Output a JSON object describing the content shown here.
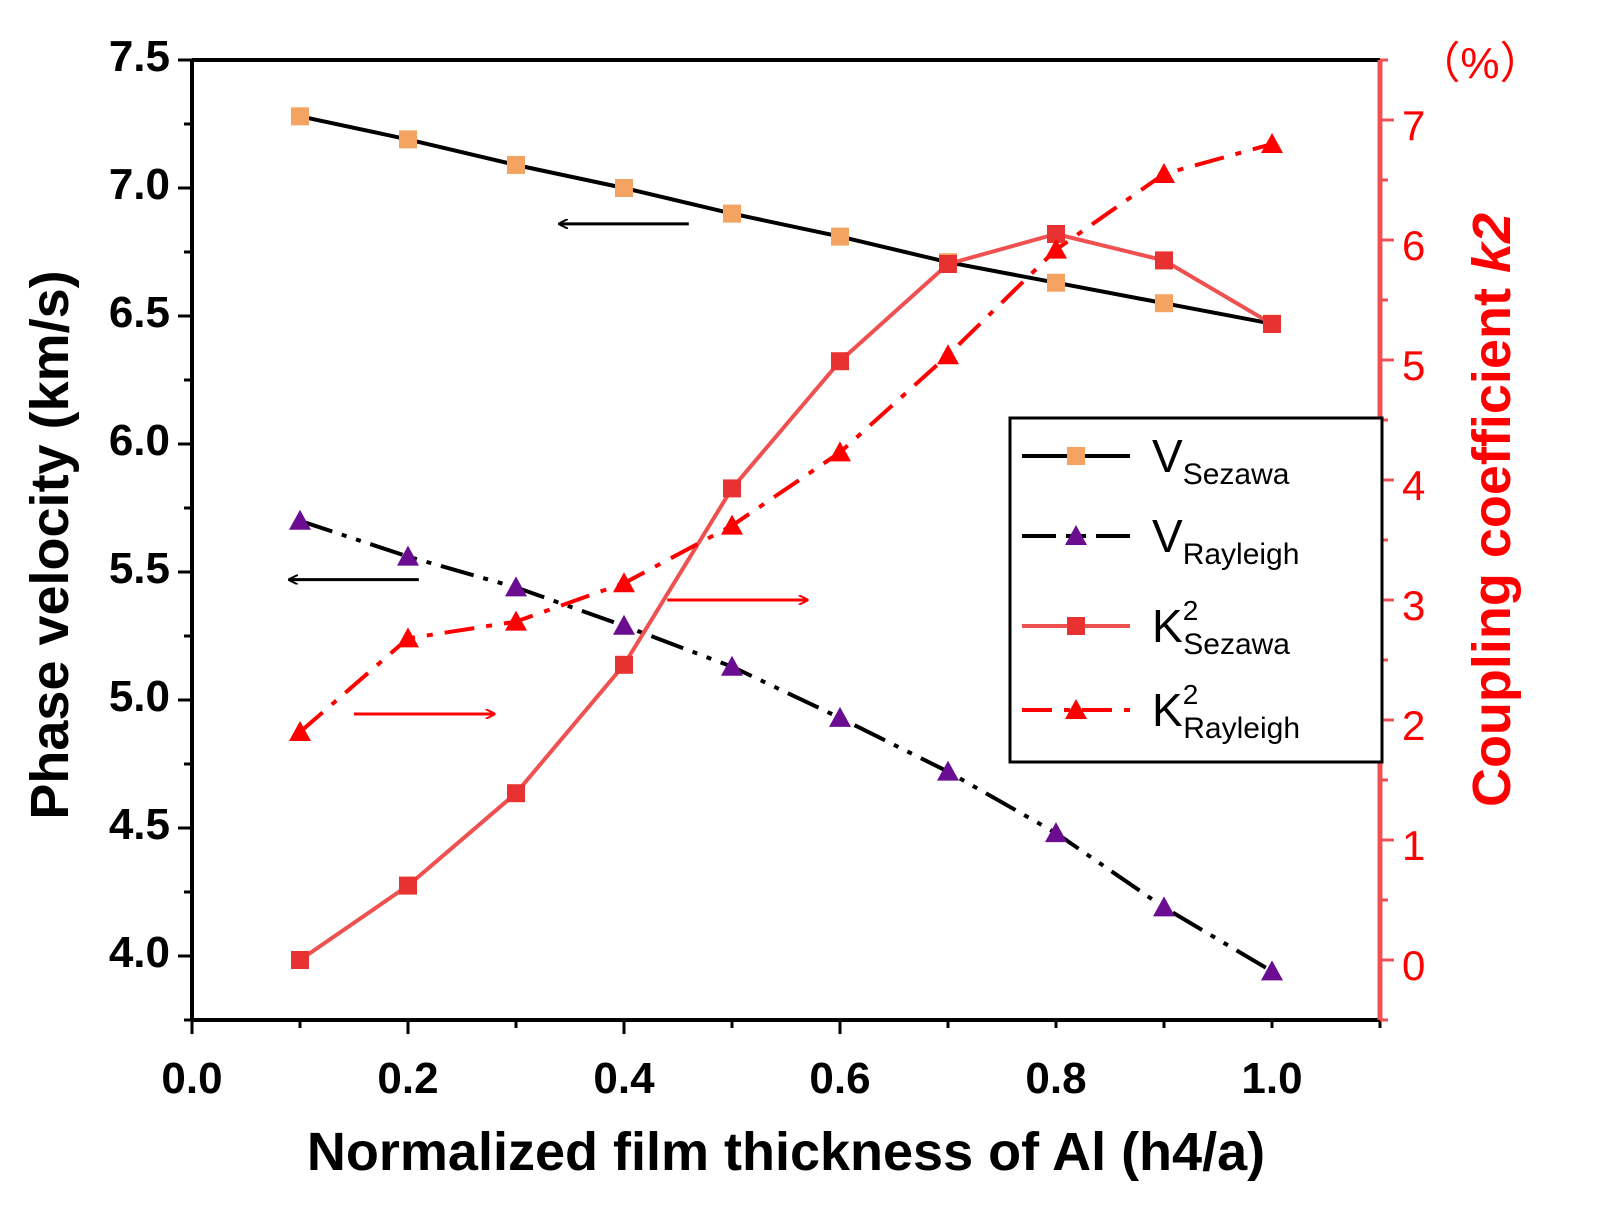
{
  "chart_data": {
    "type": "line",
    "x": [
      0.1,
      0.2,
      0.3,
      0.4,
      0.5,
      0.6,
      0.7,
      0.8,
      0.9,
      1.0
    ],
    "xlabel": "Normalized film thickness of Al (h4/a)",
    "xlim": [
      0.0,
      1.1
    ],
    "xticks": [
      "0.0",
      "0.2",
      "0.4",
      "0.6",
      "0.8",
      "1.0"
    ],
    "ylabel_left": "Phase velocity (km/s)",
    "ylim_left": [
      3.75,
      7.5
    ],
    "yticks_left": [
      "4.0",
      "4.5",
      "5.0",
      "5.5",
      "6.0",
      "6.5",
      "7.0",
      "7.5"
    ],
    "ylabel_right": "Coupling coefficient k2",
    "ylabel_right_main": "Coupling coefficient ",
    "ylabel_right_var": "k",
    "ylabel_right_exp": "2",
    "right_unit": "（%）",
    "ylim_right": [
      -0.5,
      7.5
    ],
    "yticks_right": [
      "0",
      "1",
      "2",
      "3",
      "4",
      "5",
      "6",
      "7"
    ],
    "series": [
      {
        "name": "V_Sezawa",
        "label_main": "V",
        "label_sub": "Sezawa",
        "label_sup": "",
        "axis": "left",
        "color": "#000000",
        "marker_color": "#f4a460",
        "marker": "square",
        "dash": "",
        "values": [
          7.28,
          7.19,
          7.09,
          7.0,
          6.9,
          6.81,
          6.71,
          6.63,
          6.55,
          6.47
        ]
      },
      {
        "name": "V_Rayleigh",
        "label_main": "V",
        "label_sub": "Rayleigh",
        "label_sup": "",
        "axis": "left",
        "color": "#000000",
        "marker_color": "#6a0d91",
        "marker": "triangle",
        "dash": "34 10 5 10 5 10",
        "values": [
          5.7,
          5.56,
          5.44,
          5.29,
          5.13,
          4.93,
          4.72,
          4.48,
          4.19,
          3.94
        ]
      },
      {
        "name": "K2_Sezawa",
        "label_main": "K",
        "label_sub": "Sezawa",
        "label_sup": "2",
        "axis": "right",
        "color": "#ef5050",
        "marker_color": "#e83232",
        "marker": "square",
        "dash": "",
        "values": [
          0.0,
          0.62,
          1.39,
          2.46,
          3.93,
          4.99,
          5.8,
          6.05,
          5.83,
          5.3
        ]
      },
      {
        "name": "K2_Rayleigh",
        "label_main": "K",
        "label_sub": "Rayleigh",
        "label_sup": "2",
        "axis": "right",
        "color": "#ff0000",
        "marker_color": "#ff0000",
        "marker": "triangle",
        "dash": "30 12 6 12",
        "values": [
          1.9,
          2.68,
          2.82,
          3.14,
          3.62,
          4.23,
          5.04,
          5.92,
          6.55,
          6.8
        ]
      }
    ],
    "annotations": [
      {
        "type": "arrow",
        "direction": "left",
        "color": "#000000",
        "points_to": "left axis",
        "x_from": 0.46,
        "x_to": 0.34,
        "y_left": 6.86
      },
      {
        "type": "arrow",
        "direction": "left",
        "color": "#000000",
        "points_to": "left axis",
        "x_from": 0.21,
        "x_to": 0.09,
        "y_left": 5.47
      },
      {
        "type": "arrow",
        "direction": "right",
        "color": "#ff0000",
        "points_to": "right axis",
        "x_from": 0.44,
        "x_to": 0.57,
        "y_right": 3.0
      },
      {
        "type": "arrow",
        "direction": "right",
        "color": "#ff0000",
        "points_to": "right axis",
        "x_from": 0.15,
        "x_to": 0.28,
        "y_right": 2.05
      }
    ],
    "legend_position": "right-middle",
    "grid": false
  }
}
